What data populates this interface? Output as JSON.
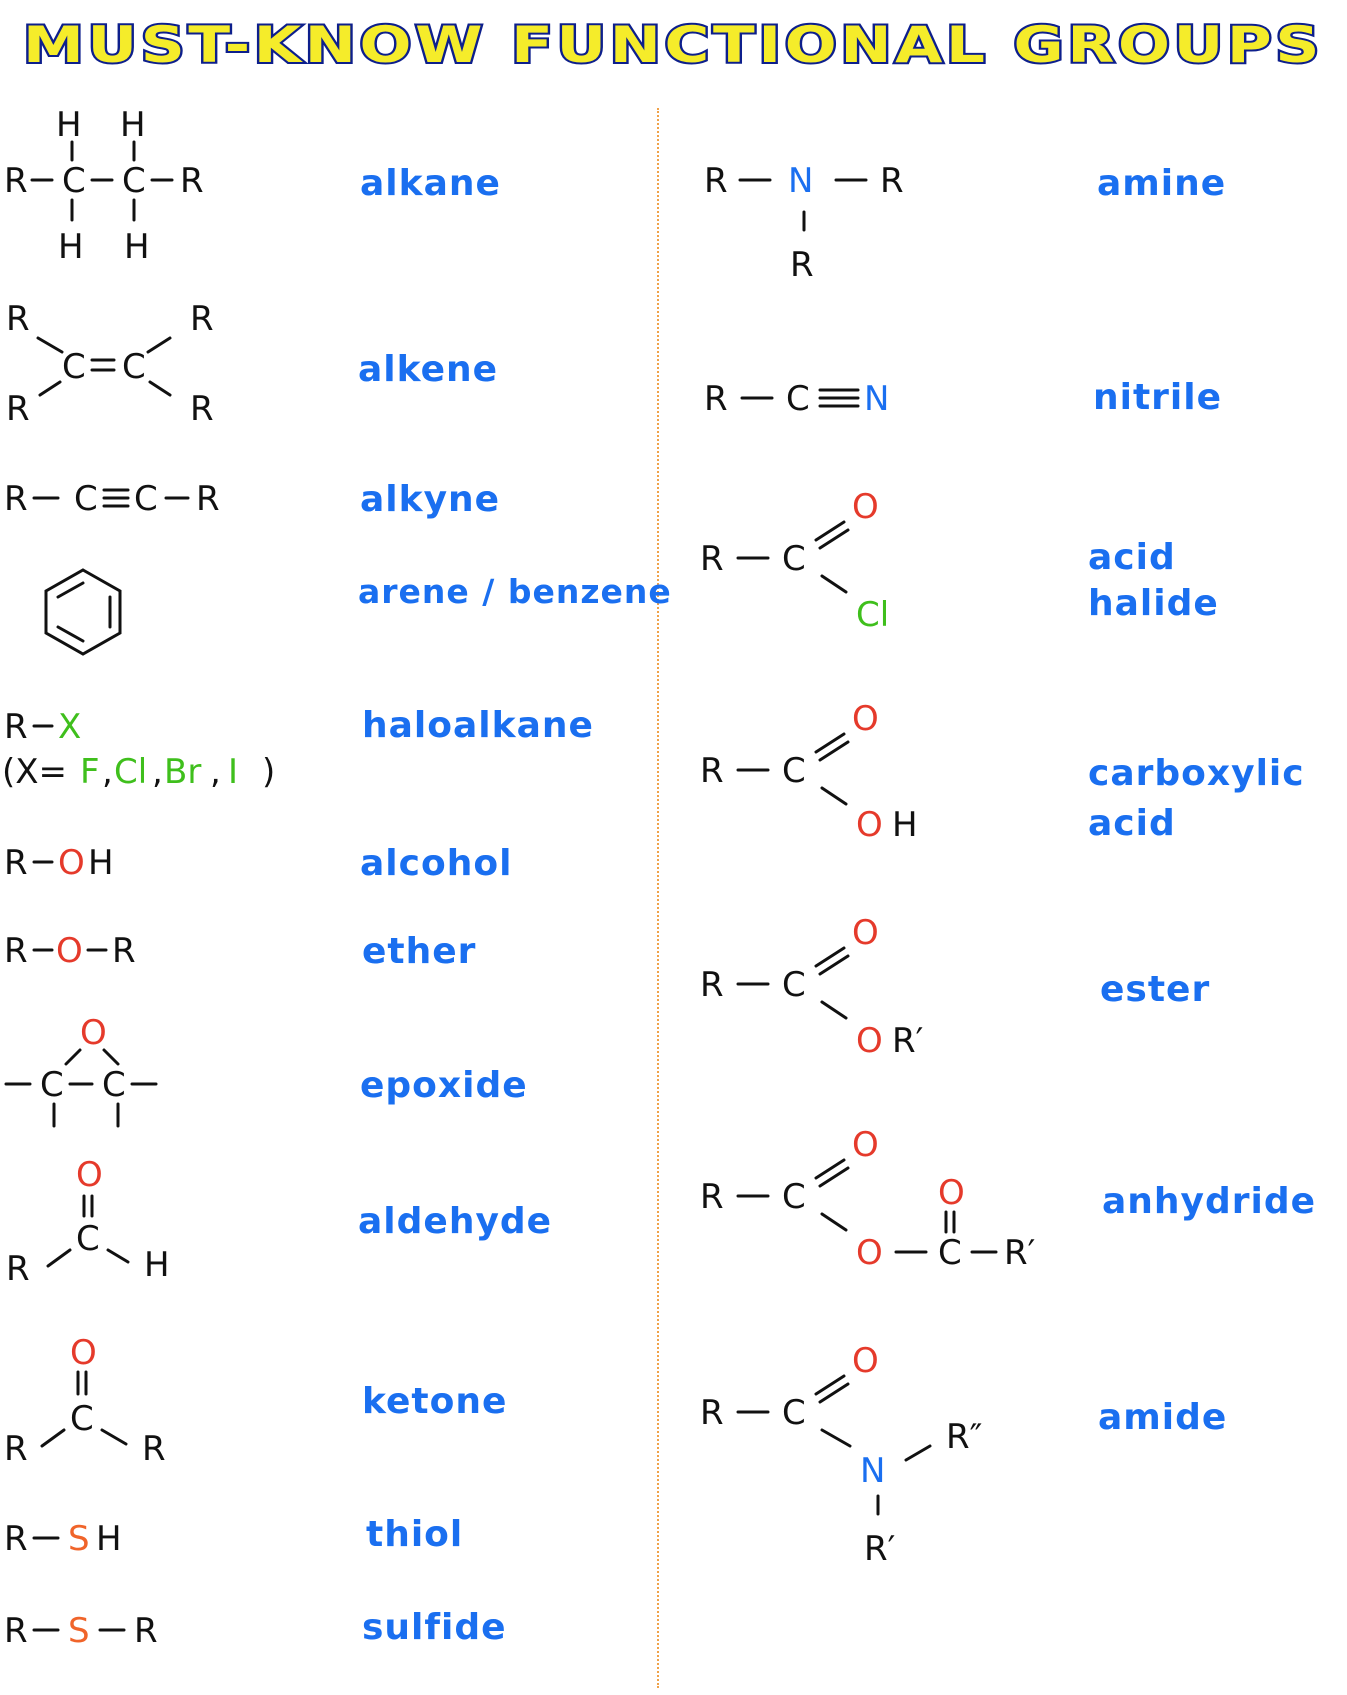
{
  "title": "MUST-KNOW FUNCTIONAL GROUPS",
  "colors": {
    "title_fill": "#f5ec2a",
    "title_outline": "#0d1f8c",
    "label": "#1a6ff0",
    "oxygen": "#e53a2b",
    "halogen": "#3fbf1c",
    "nitrogen": "#1a6ff0",
    "sulfur": "#f0642a",
    "divider": "#f0a24a"
  },
  "groups": {
    "alkane": "alkane",
    "alkene": "alkene",
    "alkyne": "alkyne",
    "arene": "arene / benzene",
    "haloalkane": "haloalkane",
    "alcohol": "alcohol",
    "ether": "ether",
    "epoxide": "epoxide",
    "aldehyde": "aldehyde",
    "ketone": "ketone",
    "thiol": "thiol",
    "sulfide": "sulfide",
    "amine": "amine",
    "nitrile": "nitrile",
    "acid_halide_1": "acid",
    "acid_halide_2": "halide",
    "carboxylic_1": "carboxylic",
    "carboxylic_2": "acid",
    "ester": "ester",
    "anhydride": "anhydride",
    "amide": "amide"
  },
  "atoms": {
    "R": "R",
    "C": "C",
    "H": "H",
    "O": "O",
    "N": "N",
    "S": "S",
    "X": "X",
    "Cl": "Cl",
    "OH": "OH",
    "SH": "SH",
    "R1": "R′",
    "R2": "R″",
    "OR1": "OR′",
    "halogen_list_open": "(X=",
    "F": "F",
    "Br": "Br",
    "I": "I",
    "comma": ",",
    "close": ")"
  }
}
